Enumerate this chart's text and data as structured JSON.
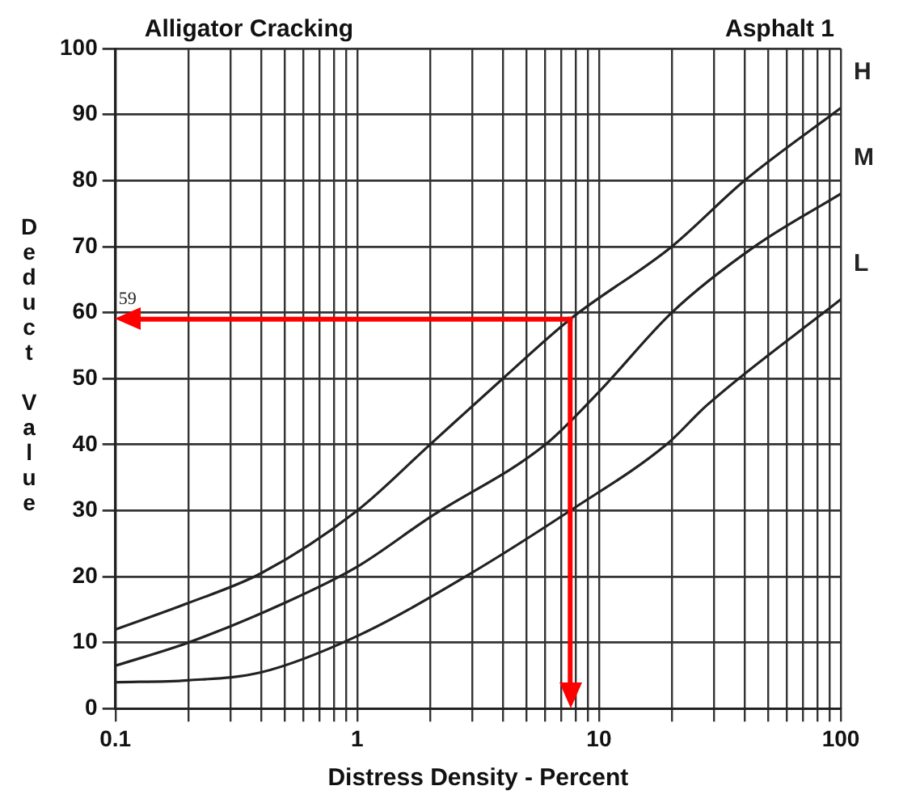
{
  "chart_data": {
    "type": "line",
    "title": "Alligator Cracking",
    "subtitle": "Asphalt 1",
    "xlabel": "Distress Density - Percent",
    "ylabel": "Deduct Value",
    "log": "x",
    "grid": true,
    "legend": false,
    "marker": "none",
    "line_style": "solid",
    "xlim": [
      0.1,
      100
    ],
    "xticks": [
      0.1,
      {
        "value": 0.2,
        "label": null
      },
      {
        "value": 0.3,
        "label": null
      },
      {
        "value": 0.4,
        "label": null
      },
      {
        "value": 0.5,
        "label": null
      },
      {
        "value": 0.6,
        "label": null
      },
      {
        "value": 0.7,
        "label": null
      },
      {
        "value": 0.8,
        "label": null
      },
      {
        "value": 0.9,
        "label": null
      },
      1,
      {
        "value": 2,
        "label": null
      },
      {
        "value": 3,
        "label": null
      },
      {
        "value": 4,
        "label": null
      },
      {
        "value": 5,
        "label": null
      },
      {
        "value": 6,
        "label": null
      },
      {
        "value": 7,
        "label": null
      },
      {
        "value": 8,
        "label": null
      },
      {
        "value": 9,
        "label": null
      },
      10,
      {
        "value": 20,
        "label": null
      },
      {
        "value": 30,
        "label": null
      },
      {
        "value": 40,
        "label": null
      },
      {
        "value": 50,
        "label": null
      },
      {
        "value": 60,
        "label": null
      },
      {
        "value": 70,
        "label": null
      },
      {
        "value": 80,
        "label": null
      },
      {
        "value": 90,
        "label": null
      },
      100
    ],
    "ylim": [
      0,
      100
    ],
    "yticks": [
      0,
      10,
      20,
      30,
      40,
      50,
      60,
      70,
      80,
      90,
      100
    ],
    "series": [
      {
        "name": "H",
        "color": "#222222",
        "x": [
          0.1,
          0.2,
          0.4,
          1,
          2,
          4,
          7.6,
          20,
          40,
          100
        ],
        "values": [
          12,
          16,
          20.5,
          30,
          40,
          50,
          59,
          70,
          80,
          91
        ]
      },
      {
        "name": "M",
        "color": "#222222",
        "x": [
          0.1,
          0.2,
          0.5,
          1,
          2,
          6,
          10,
          20,
          44,
          100
        ],
        "values": [
          6.5,
          10,
          16,
          21.5,
          29,
          40,
          48,
          60,
          70,
          78
        ]
      },
      {
        "name": "L",
        "color": "#222222",
        "x": [
          0.1,
          0.2,
          0.4,
          1,
          2.8,
          7.6,
          19,
          28,
          100
        ],
        "values": [
          4,
          4.3,
          5.5,
          11,
          20,
          30,
          40,
          46,
          62
        ]
      }
    ],
    "ref_lines": [
      {
        "axis": "y",
        "value": 59,
        "label": "59",
        "color": "#ff0000"
      },
      {
        "axis": "x",
        "value": 7.6,
        "color": "#ff0000"
      }
    ]
  }
}
